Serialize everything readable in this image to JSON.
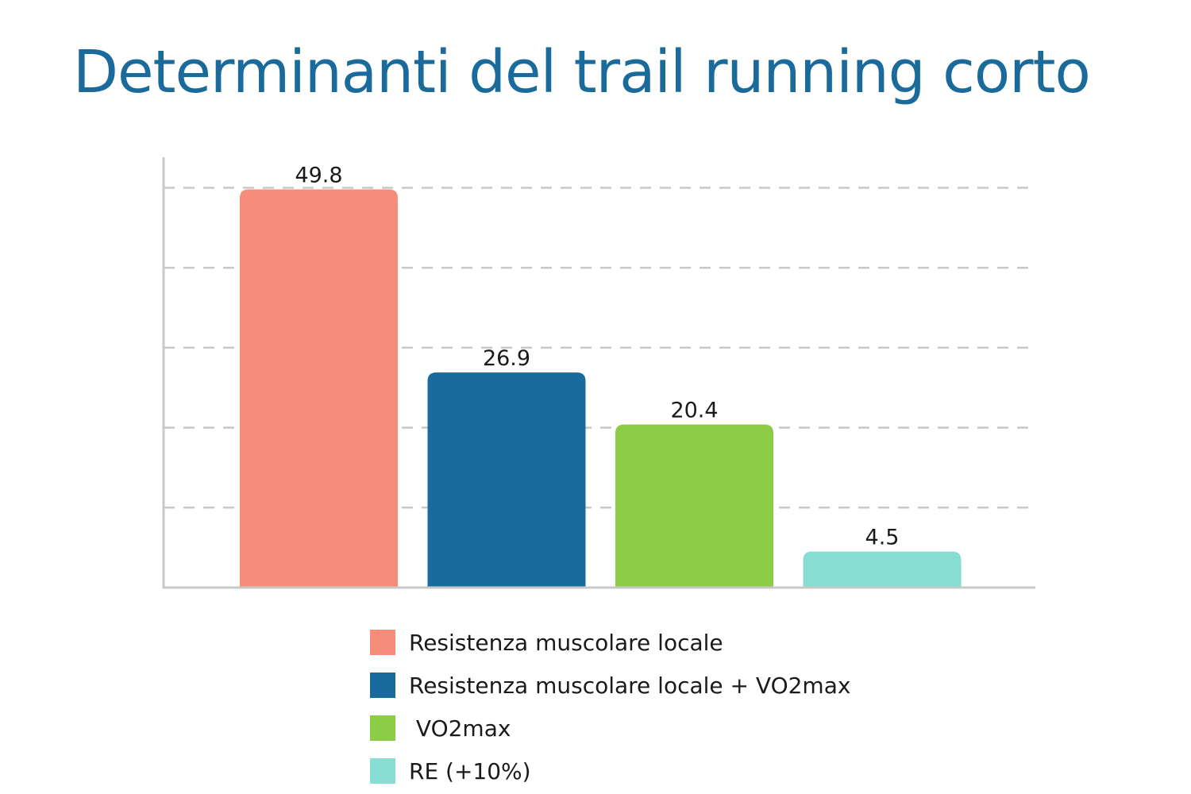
{
  "colors": {
    "title": "#1b6a9c",
    "grid": "#c8c8c8",
    "axis": "#c8c8c8",
    "label": "#1a1a1a"
  },
  "chart_data": {
    "type": "bar",
    "title": "Determinanti del trail running corto",
    "xlabel": "",
    "ylabel": "",
    "ylim": [
      0,
      54
    ],
    "grid": true,
    "legend_position": "bottom",
    "categories": [
      "Resistenza muscolare locale",
      "Resistenza muscolare locale + VO2max",
      " VO2max",
      "RE (+10%)"
    ],
    "values": [
      49.8,
      26.9,
      20.4,
      4.5
    ],
    "value_labels": [
      "49.8",
      "26.9",
      "20.4",
      "4.5"
    ],
    "bar_colors": [
      "#f68c7a",
      "#186b9c",
      "#8ccc46",
      "#88ddd3"
    ]
  }
}
